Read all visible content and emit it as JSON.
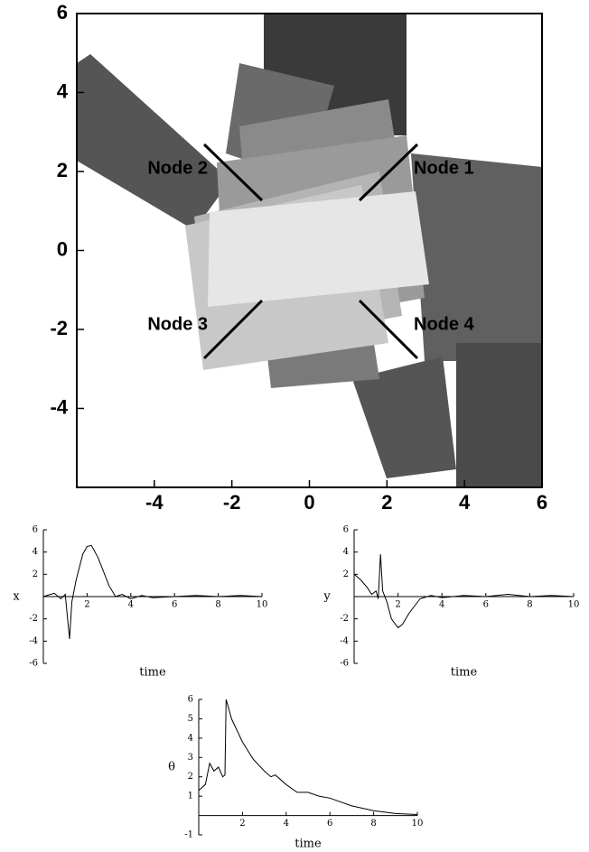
{
  "chart_data": [
    {
      "type": "plot",
      "xlim": [
        -6,
        6
      ],
      "ylim": [
        -6,
        6
      ],
      "xticks": [
        -4,
        -2,
        0,
        2,
        4,
        6
      ],
      "yticks": [
        -4,
        -2,
        0,
        2,
        4,
        6
      ],
      "annotations": [
        "Node 1",
        "Node 2",
        "Node 3",
        "Node 4"
      ]
    },
    {
      "type": "line",
      "y_label": "x",
      "x_label": "time",
      "color": "#000000",
      "xlim": [
        0,
        10
      ],
      "ylim": [
        -6,
        6
      ],
      "xticks": [
        2,
        4,
        6,
        8,
        10
      ],
      "yticks": [
        -6,
        -4,
        -2,
        2,
        4,
        6
      ],
      "x": [
        0,
        0.5,
        0.8,
        1.0,
        1.2,
        1.3,
        1.5,
        1.8,
        2.0,
        2.2,
        2.5,
        2.8,
        3.0,
        3.3,
        3.6,
        4,
        4.5,
        5,
        6,
        7,
        8,
        9,
        10
      ],
      "values": [
        0,
        0.3,
        -0.2,
        0.2,
        -3.8,
        -0.5,
        1.5,
        3.8,
        4.5,
        4.6,
        3.5,
        2.0,
        1.0,
        0,
        0.2,
        -0.2,
        0.1,
        -0.1,
        0,
        0.1,
        0,
        0.1,
        0
      ]
    },
    {
      "type": "line",
      "y_label": "y",
      "x_label": "time",
      "color": "#000000",
      "xlim": [
        0,
        10
      ],
      "ylim": [
        -6,
        6
      ],
      "xticks": [
        2,
        4,
        6,
        8,
        10
      ],
      "yticks": [
        -6,
        -4,
        -2,
        2,
        4,
        6
      ],
      "x": [
        0,
        0.3,
        0.6,
        0.8,
        1.0,
        1.1,
        1.2,
        1.3,
        1.5,
        1.7,
        2.0,
        2.2,
        2.5,
        3,
        3.5,
        4,
        5,
        6,
        7,
        8,
        9,
        10
      ],
      "values": [
        2,
        1.5,
        0.8,
        0.2,
        0.5,
        -0.2,
        3.8,
        0.5,
        -0.5,
        -2.0,
        -2.8,
        -2.5,
        -1.5,
        -0.2,
        0.1,
        -0.1,
        0.1,
        0,
        0.2,
        0,
        0.1,
        0
      ]
    },
    {
      "type": "line",
      "y_label": "θ",
      "x_label": "time",
      "color": "#000000",
      "xlim": [
        0,
        10
      ],
      "ylim": [
        -1,
        6
      ],
      "xticks": [
        2,
        4,
        6,
        8,
        10
      ],
      "yticks": [
        -1,
        1,
        2,
        3,
        4,
        5,
        6
      ],
      "x": [
        0,
        0.3,
        0.5,
        0.7,
        0.9,
        1.1,
        1.2,
        1.25,
        1.5,
        2,
        2.5,
        3,
        3.3,
        3.5,
        4,
        4.5,
        5,
        5.5,
        6,
        7,
        8,
        9,
        10
      ],
      "values": [
        1.3,
        1.6,
        2.7,
        2.3,
        2.5,
        2.0,
        2.1,
        6.0,
        5.0,
        3.8,
        2.9,
        2.3,
        2.0,
        2.1,
        1.6,
        1.2,
        1.2,
        1.0,
        0.9,
        0.5,
        0.25,
        0.1,
        0.05
      ]
    }
  ]
}
